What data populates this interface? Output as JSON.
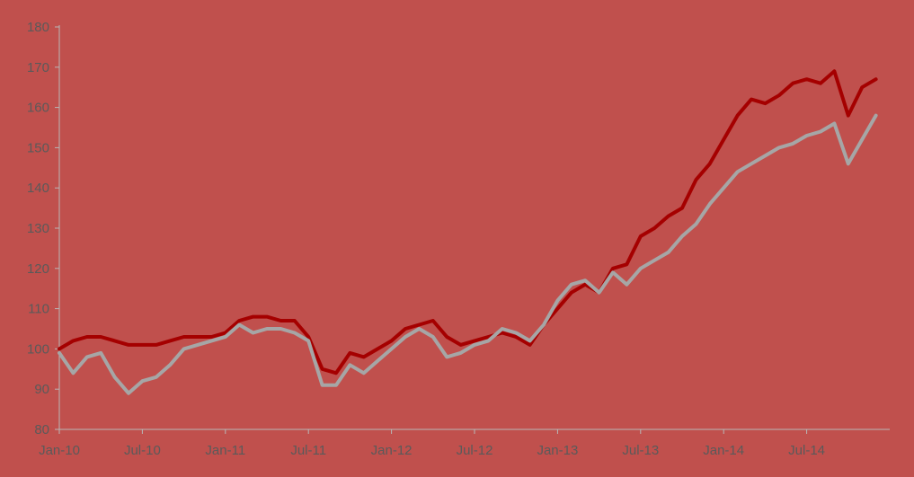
{
  "chart_data": {
    "type": "line",
    "title": "",
    "xlabel": "",
    "ylabel": "",
    "ylim": [
      80,
      180
    ],
    "yticks": [
      80,
      90,
      100,
      110,
      120,
      130,
      140,
      150,
      160,
      170,
      180
    ],
    "xlim": [
      "2010-01",
      "2014-12"
    ],
    "xticks": [
      {
        "label": "Jan-10",
        "date": "2010-01"
      },
      {
        "label": "Jul-10",
        "date": "2010-07"
      },
      {
        "label": "Jan-11",
        "date": "2011-01"
      },
      {
        "label": "Jul-11",
        "date": "2011-07"
      },
      {
        "label": "Jan-12",
        "date": "2012-01"
      },
      {
        "label": "Jul-12",
        "date": "2012-07"
      },
      {
        "label": "Jan-13",
        "date": "2013-01"
      },
      {
        "label": "Jul-13",
        "date": "2013-07"
      },
      {
        "label": "Jan-14",
        "date": "2014-01"
      },
      {
        "label": "Jul-14",
        "date": "2014-07"
      }
    ],
    "grid": false,
    "legend": "none",
    "series": [
      {
        "color": "#A50000",
        "points": [
          [
            "2010-01",
            100
          ],
          [
            "2010-02",
            102
          ],
          [
            "2010-03",
            103
          ],
          [
            "2010-04",
            103
          ],
          [
            "2010-05",
            102
          ],
          [
            "2010-06",
            101
          ],
          [
            "2010-07",
            101
          ],
          [
            "2010-08",
            101
          ],
          [
            "2010-09",
            102
          ],
          [
            "2010-10",
            103
          ],
          [
            "2010-11",
            103
          ],
          [
            "2010-12",
            103
          ],
          [
            "2011-01",
            104
          ],
          [
            "2011-02",
            107
          ],
          [
            "2011-03",
            108
          ],
          [
            "2011-04",
            108
          ],
          [
            "2011-05",
            107
          ],
          [
            "2011-06",
            107
          ],
          [
            "2011-07",
            103
          ],
          [
            "2011-08",
            95
          ],
          [
            "2011-09",
            94
          ],
          [
            "2011-10",
            99
          ],
          [
            "2011-11",
            98
          ],
          [
            "2011-12",
            100
          ],
          [
            "2012-01",
            102
          ],
          [
            "2012-02",
            105
          ],
          [
            "2012-03",
            106
          ],
          [
            "2012-04",
            107
          ],
          [
            "2012-05",
            103
          ],
          [
            "2012-06",
            101
          ],
          [
            "2012-07",
            102
          ],
          [
            "2012-08",
            103
          ],
          [
            "2012-09",
            104
          ],
          [
            "2012-10",
            103
          ],
          [
            "2012-11",
            101
          ],
          [
            "2012-12",
            106
          ],
          [
            "2013-01",
            110
          ],
          [
            "2013-02",
            114
          ],
          [
            "2013-03",
            116
          ],
          [
            "2013-04",
            114
          ],
          [
            "2013-05",
            120
          ],
          [
            "2013-06",
            121
          ],
          [
            "2013-07",
            128
          ],
          [
            "2013-08",
            130
          ],
          [
            "2013-09",
            133
          ],
          [
            "2013-10",
            135
          ],
          [
            "2013-11",
            142
          ],
          [
            "2013-12",
            146
          ],
          [
            "2014-01",
            152
          ],
          [
            "2014-02",
            158
          ],
          [
            "2014-03",
            162
          ],
          [
            "2014-04",
            161
          ],
          [
            "2014-05",
            163
          ],
          [
            "2014-06",
            166
          ],
          [
            "2014-07",
            167
          ],
          [
            "2014-08",
            166
          ],
          [
            "2014-09",
            169
          ],
          [
            "2014-10",
            158
          ],
          [
            "2014-11",
            165
          ],
          [
            "2014-12",
            167
          ]
        ]
      },
      {
        "color": "#A6A6A6",
        "points": [
          [
            "2010-01",
            99
          ],
          [
            "2010-02",
            94
          ],
          [
            "2010-03",
            98
          ],
          [
            "2010-04",
            99
          ],
          [
            "2010-05",
            93
          ],
          [
            "2010-06",
            89
          ],
          [
            "2010-07",
            92
          ],
          [
            "2010-08",
            93
          ],
          [
            "2010-09",
            96
          ],
          [
            "2010-10",
            100
          ],
          [
            "2010-11",
            101
          ],
          [
            "2010-12",
            102
          ],
          [
            "2011-01",
            103
          ],
          [
            "2011-02",
            106
          ],
          [
            "2011-03",
            104
          ],
          [
            "2011-04",
            105
          ],
          [
            "2011-05",
            105
          ],
          [
            "2011-06",
            104
          ],
          [
            "2011-07",
            102
          ],
          [
            "2011-08",
            91
          ],
          [
            "2011-09",
            91
          ],
          [
            "2011-10",
            96
          ],
          [
            "2011-11",
            94
          ],
          [
            "2011-12",
            97
          ],
          [
            "2012-01",
            100
          ],
          [
            "2012-02",
            103
          ],
          [
            "2012-03",
            105
          ],
          [
            "2012-04",
            103
          ],
          [
            "2012-05",
            98
          ],
          [
            "2012-06",
            99
          ],
          [
            "2012-07",
            101
          ],
          [
            "2012-08",
            102
          ],
          [
            "2012-09",
            105
          ],
          [
            "2012-10",
            104
          ],
          [
            "2012-11",
            102
          ],
          [
            "2012-12",
            106
          ],
          [
            "2013-01",
            112
          ],
          [
            "2013-02",
            116
          ],
          [
            "2013-03",
            117
          ],
          [
            "2013-04",
            114
          ],
          [
            "2013-05",
            119
          ],
          [
            "2013-06",
            116
          ],
          [
            "2013-07",
            120
          ],
          [
            "2013-08",
            122
          ],
          [
            "2013-09",
            124
          ],
          [
            "2013-10",
            128
          ],
          [
            "2013-11",
            131
          ],
          [
            "2013-12",
            136
          ],
          [
            "2014-01",
            140
          ],
          [
            "2014-02",
            144
          ],
          [
            "2014-03",
            146
          ],
          [
            "2014-04",
            148
          ],
          [
            "2014-05",
            150
          ],
          [
            "2014-06",
            151
          ],
          [
            "2014-07",
            153
          ],
          [
            "2014-08",
            154
          ],
          [
            "2014-09",
            156
          ],
          [
            "2014-10",
            146
          ],
          [
            "2014-11",
            152
          ],
          [
            "2014-12",
            158
          ]
        ]
      }
    ]
  }
}
